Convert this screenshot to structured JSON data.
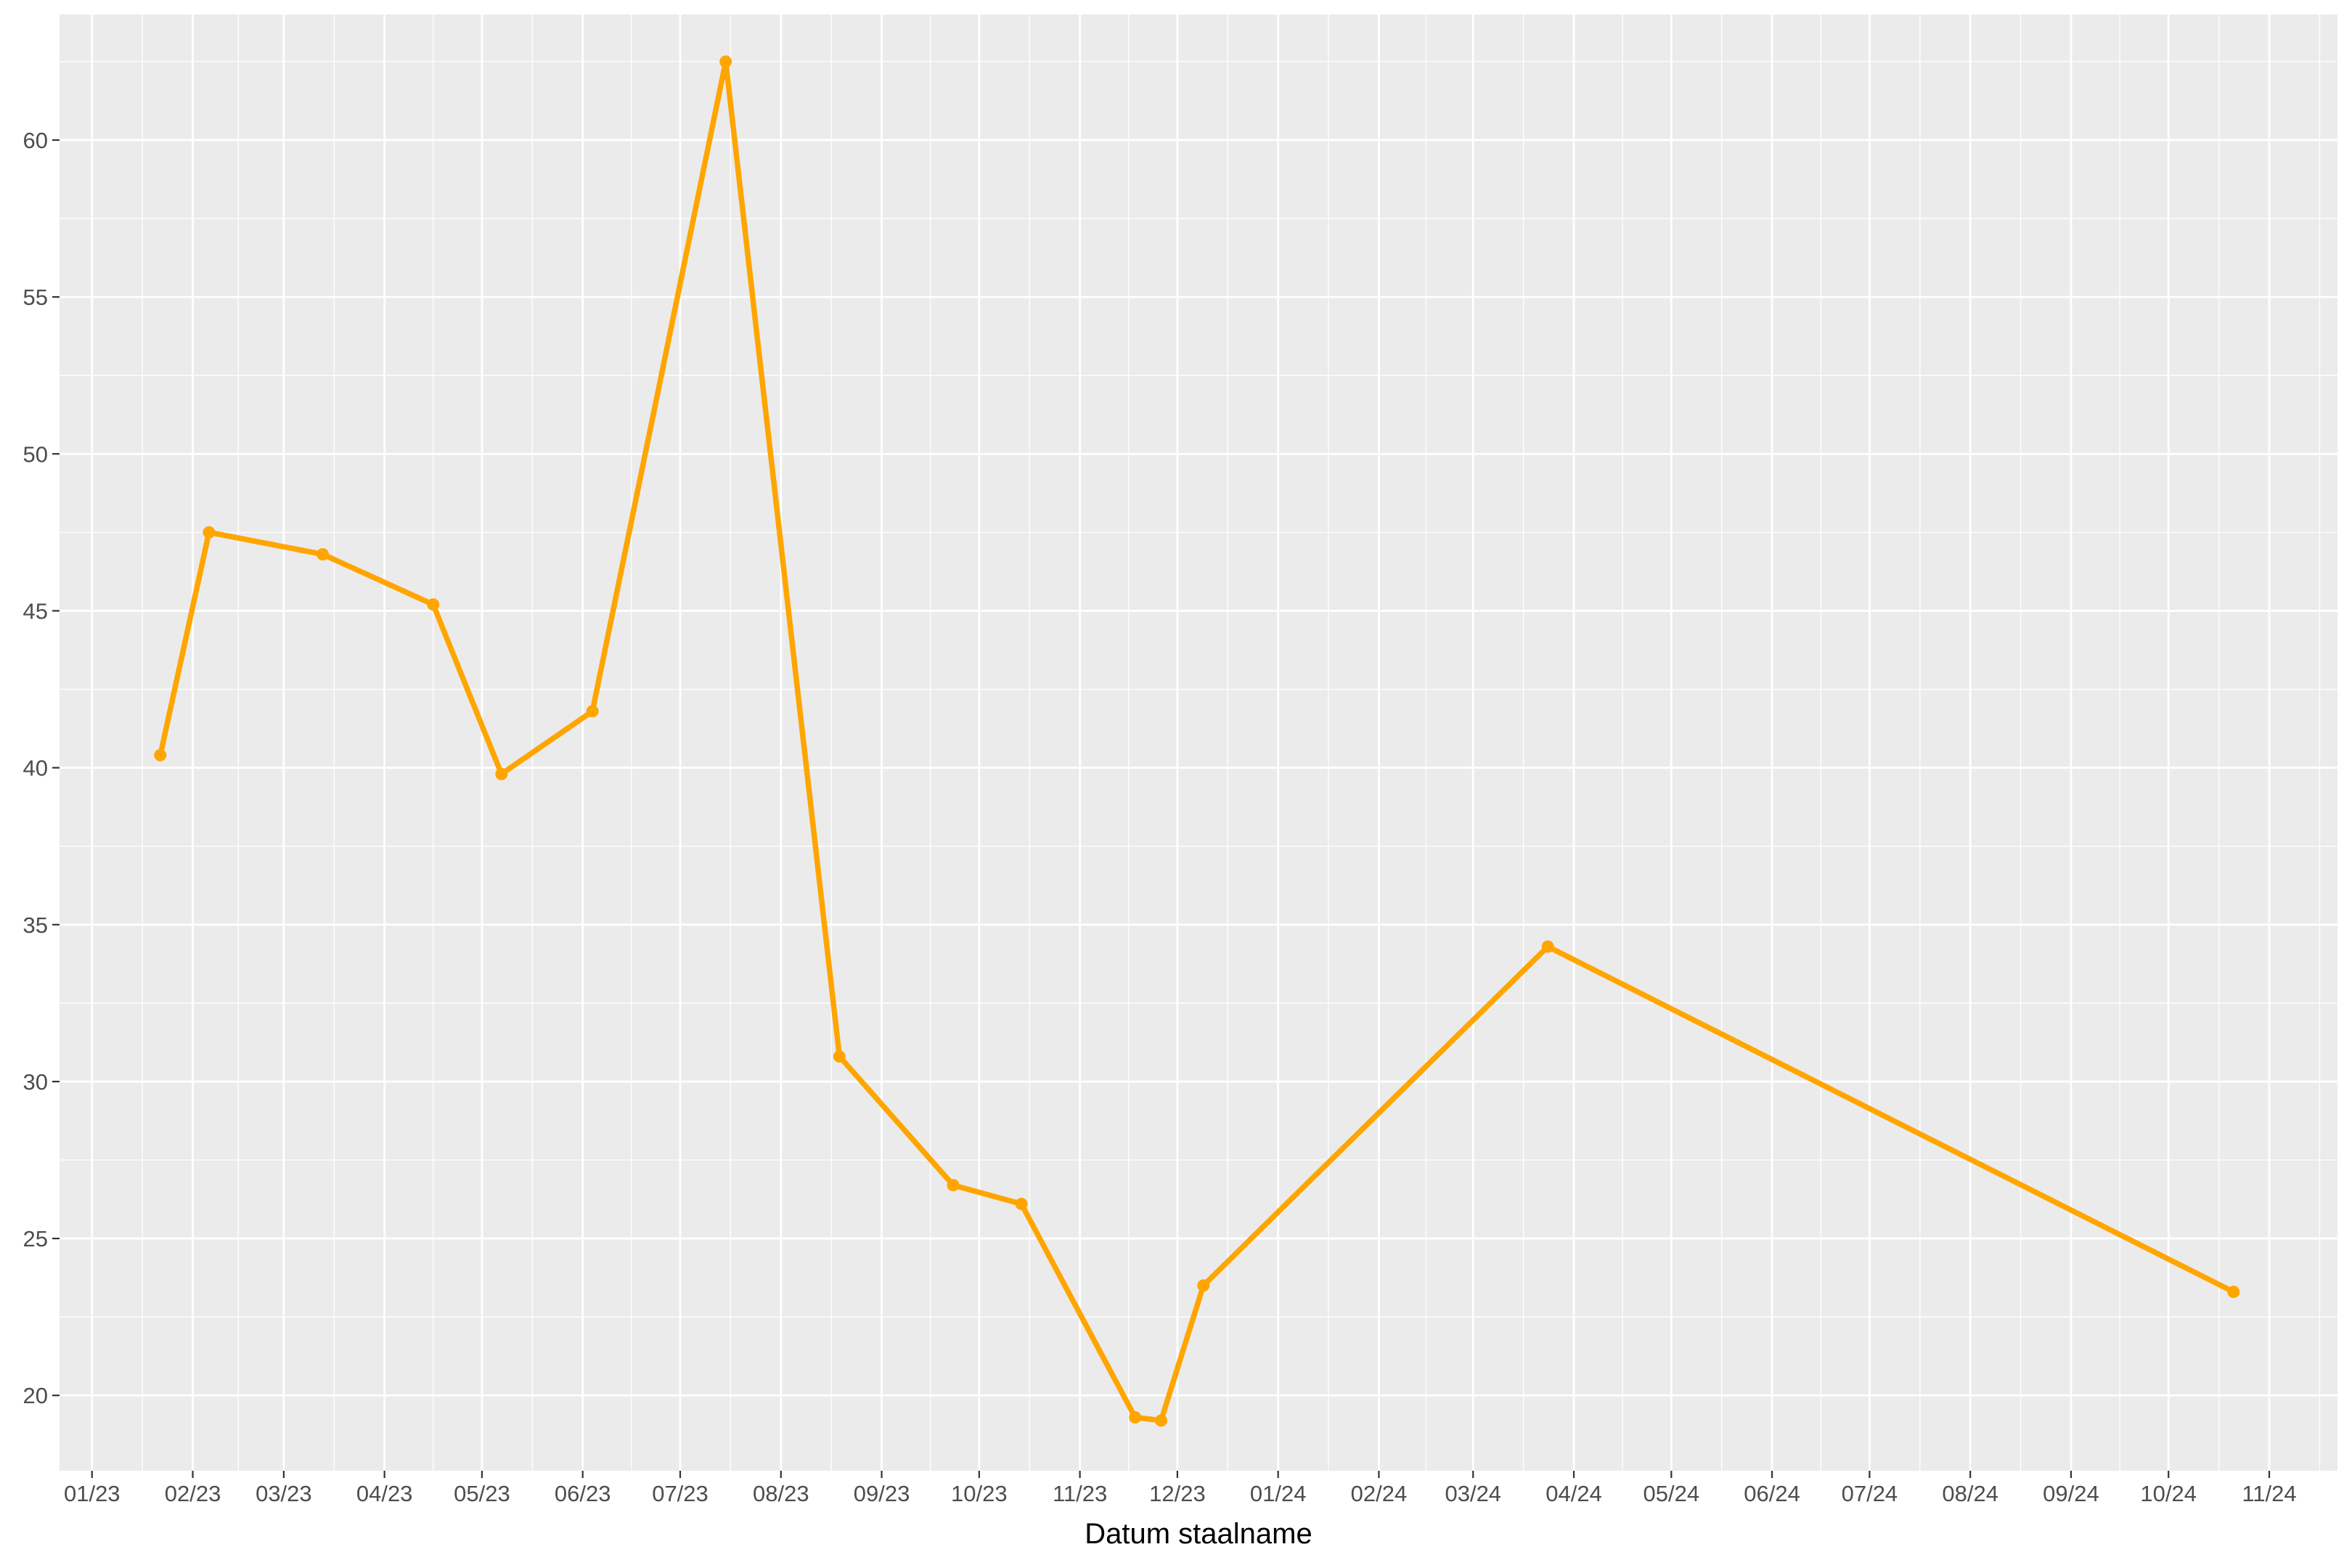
{
  "chart_data": {
    "type": "line",
    "xlabel": "Datum staalname",
    "ylabel": "",
    "x_axis": {
      "type": "date",
      "range": [
        "2022-12-22",
        "2024-11-22"
      ],
      "ticks": [
        {
          "date": "2023-01-01",
          "label": "01/23"
        },
        {
          "date": "2023-02-01",
          "label": "02/23"
        },
        {
          "date": "2023-03-01",
          "label": "03/23"
        },
        {
          "date": "2023-04-01",
          "label": "04/23"
        },
        {
          "date": "2023-05-01",
          "label": "05/23"
        },
        {
          "date": "2023-06-01",
          "label": "06/23"
        },
        {
          "date": "2023-07-01",
          "label": "07/23"
        },
        {
          "date": "2023-08-01",
          "label": "08/23"
        },
        {
          "date": "2023-09-01",
          "label": "09/23"
        },
        {
          "date": "2023-10-01",
          "label": "10/23"
        },
        {
          "date": "2023-11-01",
          "label": "11/23"
        },
        {
          "date": "2023-12-01",
          "label": "12/23"
        },
        {
          "date": "2024-01-01",
          "label": "01/24"
        },
        {
          "date": "2024-02-01",
          "label": "02/24"
        },
        {
          "date": "2024-03-01",
          "label": "03/24"
        },
        {
          "date": "2024-04-01",
          "label": "04/24"
        },
        {
          "date": "2024-05-01",
          "label": "05/24"
        },
        {
          "date": "2024-06-01",
          "label": "06/24"
        },
        {
          "date": "2024-07-01",
          "label": "07/24"
        },
        {
          "date": "2024-08-01",
          "label": "08/24"
        },
        {
          "date": "2024-09-01",
          "label": "09/24"
        },
        {
          "date": "2024-10-01",
          "label": "10/24"
        },
        {
          "date": "2024-11-01",
          "label": "11/24"
        }
      ]
    },
    "y_axis": {
      "range": [
        17.6,
        64.0
      ],
      "ticks": [
        20,
        25,
        30,
        35,
        40,
        45,
        50,
        55,
        60
      ]
    },
    "grid": true,
    "series": [
      {
        "color": "#FFA500",
        "points": [
          {
            "x": "2023-01-22",
            "y": 40.4
          },
          {
            "x": "2023-02-06",
            "y": 47.5
          },
          {
            "x": "2023-03-13",
            "y": 46.8
          },
          {
            "x": "2023-04-16",
            "y": 45.2
          },
          {
            "x": "2023-05-07",
            "y": 39.8
          },
          {
            "x": "2023-06-04",
            "y": 41.8
          },
          {
            "x": "2023-07-15",
            "y": 62.5
          },
          {
            "x": "2023-08-19",
            "y": 30.8
          },
          {
            "x": "2023-09-23",
            "y": 26.7
          },
          {
            "x": "2023-10-14",
            "y": 26.1
          },
          {
            "x": "2023-11-18",
            "y": 19.3
          },
          {
            "x": "2023-11-26",
            "y": 19.2
          },
          {
            "x": "2023-12-09",
            "y": 23.5
          },
          {
            "x": "2024-03-24",
            "y": 34.3
          },
          {
            "x": "2024-10-21",
            "y": 23.3
          }
        ]
      }
    ]
  }
}
